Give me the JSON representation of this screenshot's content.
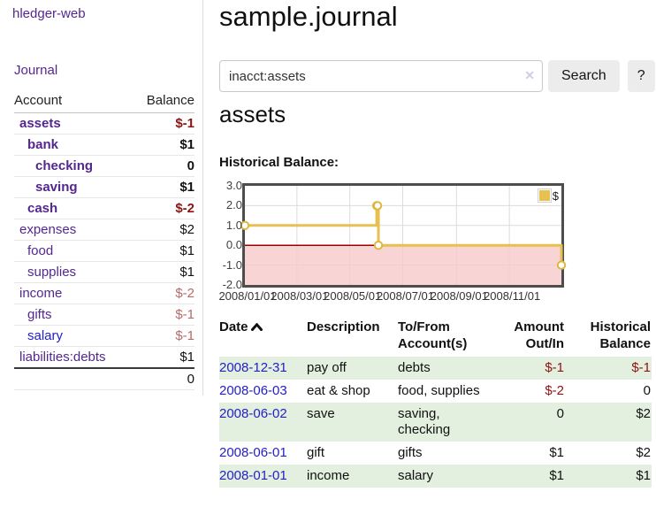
{
  "colors": {
    "link_purple": "#54278E",
    "link_blue": "#2420C6",
    "negative_dark_red": "#8E1313",
    "negative_light_red": "#B56A6A",
    "row_green": "#E4F0DF",
    "series_gold": "#E7C050",
    "marker_ring_gold": "#DFB73F",
    "negative_region_pink": "#F6C9C9",
    "zero_line_red": "#990000",
    "grid_gray": "#DCDCDC"
  },
  "sidebar": {
    "brand": "hledger-web",
    "journal_link": "Journal",
    "headers": {
      "account": "Account",
      "balance": "Balance"
    },
    "rows": [
      {
        "name": "assets",
        "balance": "$-1",
        "depth": 1,
        "bold": true,
        "balance_class": "neg"
      },
      {
        "name": "bank",
        "balance": "$1",
        "depth": 2,
        "bold": true,
        "balance_class": "pos"
      },
      {
        "name": "checking",
        "balance": "0",
        "depth": 3,
        "bold": true,
        "balance_class": "pos"
      },
      {
        "name": "saving",
        "balance": "$1",
        "depth": 3,
        "bold": true,
        "balance_class": "pos"
      },
      {
        "name": "cash",
        "balance": "$-2",
        "depth": 2,
        "bold": true,
        "balance_class": "neg"
      },
      {
        "name": "expenses",
        "balance": "$2",
        "depth": 1,
        "bold": false,
        "balance_class": "pos"
      },
      {
        "name": "food",
        "balance": "$1",
        "depth": 2,
        "bold": false,
        "balance_class": "pos"
      },
      {
        "name": "supplies",
        "balance": "$1",
        "depth": 2,
        "bold": false,
        "balance_class": "pos"
      },
      {
        "name": "income",
        "balance": "$-2",
        "depth": 1,
        "bold": false,
        "balance_class": "neg-light"
      },
      {
        "name": "gifts",
        "balance": "$-1",
        "depth": 2,
        "bold": false,
        "balance_class": "neg-light"
      },
      {
        "name": "salary",
        "balance": "$-1",
        "depth": 2,
        "bold": false,
        "balance_class": "neg-light",
        "link": "blue"
      },
      {
        "name": "liabilities:debts",
        "balance": "$1",
        "depth": 1,
        "bold": false,
        "balance_class": "pos"
      }
    ],
    "total": "0"
  },
  "main": {
    "title": "sample.journal",
    "search": {
      "value": "inacct:assets",
      "clear_icon": "✕",
      "button_label": "Search",
      "help_label": "?"
    },
    "account_heading": "assets",
    "chart_title": "Historical Balance:"
  },
  "chart_data": {
    "type": "line",
    "step": true,
    "title": "Historical Balance",
    "series": [
      {
        "name": "$",
        "points": [
          {
            "date": "2008-01-01",
            "value": 1
          },
          {
            "date": "2008-06-01",
            "value": 2
          },
          {
            "date": "2008-06-02",
            "value": 2
          },
          {
            "date": "2008-06-03",
            "value": 0
          },
          {
            "date": "2008-12-31",
            "value": -1
          }
        ]
      }
    ],
    "x_range": [
      "2008-01-01",
      "2008-12-31"
    ],
    "ylim": [
      -2,
      3
    ],
    "yticks": [
      "3.0",
      "2.0",
      "1.0",
      "0.0",
      "-1.0",
      "-2.0"
    ],
    "xticks": [
      "2008/01/01",
      "2008/03/01",
      "2008/05/01",
      "2008/07/01",
      "2008/09/01",
      "2008/11/01"
    ],
    "legend": {
      "label": "$",
      "position": "top-right"
    },
    "grid": true,
    "negative_region_shaded": true
  },
  "register": {
    "headers": [
      "Date",
      "Description",
      "To/From Account(s)",
      "Amount Out/In",
      "Historical Balance"
    ],
    "sort": {
      "column": "Date",
      "direction": "ascending"
    },
    "rows": [
      {
        "date": "2008-12-31",
        "description": "pay off",
        "to_from": "debts",
        "amount": "$-1",
        "amount_class": "neg",
        "balance": "$-1",
        "balance_class": "neg"
      },
      {
        "date": "2008-06-03",
        "description": "eat & shop",
        "to_from": "food, supplies",
        "amount": "$-2",
        "amount_class": "neg",
        "balance": "0",
        "balance_class": "pos"
      },
      {
        "date": "2008-06-02",
        "description": "save",
        "to_from": "saving,\nchecking",
        "amount": "0",
        "amount_class": "pos",
        "balance": "$2",
        "balance_class": "pos"
      },
      {
        "date": "2008-06-01",
        "description": "gift",
        "to_from": "gifts",
        "amount": "$1",
        "amount_class": "pos",
        "balance": "$2",
        "balance_class": "pos"
      },
      {
        "date": "2008-01-01",
        "description": "income",
        "to_from": "salary",
        "amount": "$1",
        "amount_class": "pos",
        "balance": "$1",
        "balance_class": "pos"
      }
    ]
  }
}
